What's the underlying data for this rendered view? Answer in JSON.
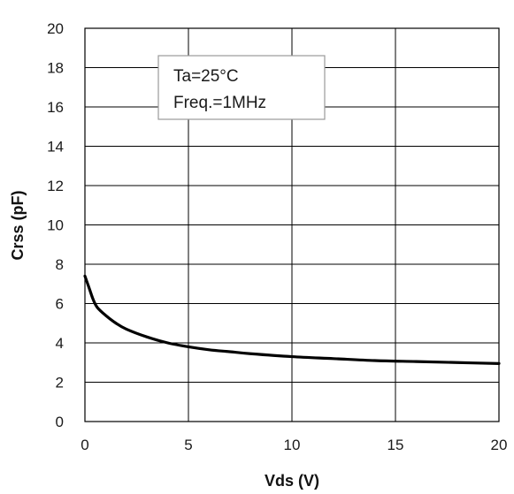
{
  "chart_data": {
    "type": "line",
    "xlabel": "Vds (V)",
    "ylabel": "Crss (pF)",
    "xlim": [
      0,
      20
    ],
    "ylim": [
      0,
      20
    ],
    "x_ticks": [
      0,
      5,
      10,
      15,
      20
    ],
    "y_ticks": [
      0,
      2,
      4,
      6,
      8,
      10,
      12,
      14,
      16,
      18,
      20
    ],
    "grid": true,
    "annotations": [
      "Ta=25°C",
      "Freq.=1MHz"
    ],
    "series": [
      {
        "x": [
          0,
          0.2,
          0.4,
          0.6,
          1,
          1.5,
          2,
          3,
          4,
          5,
          6,
          7,
          8,
          10,
          12,
          14,
          16,
          18,
          20
        ],
        "y": [
          7.4,
          6.8,
          6.2,
          5.8,
          5.4,
          5.0,
          4.7,
          4.3,
          4.0,
          3.8,
          3.65,
          3.55,
          3.45,
          3.3,
          3.2,
          3.1,
          3.05,
          3.0,
          2.95
        ]
      }
    ],
    "colors": {
      "line": "#000000",
      "grid": "#000000",
      "annotation_border": "#9a9a9a"
    }
  }
}
